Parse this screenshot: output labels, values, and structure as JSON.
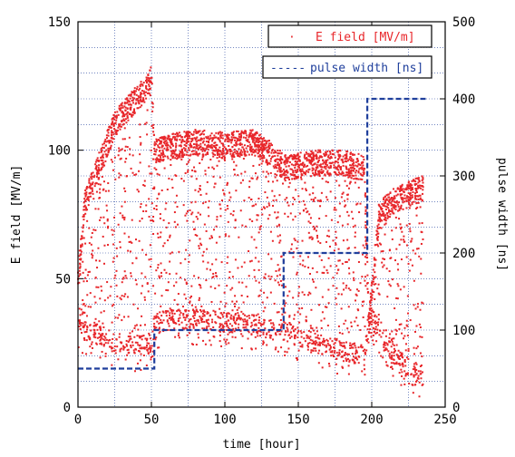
{
  "chart_data": {
    "type": "scatter",
    "xlabel": "time [hour]",
    "ylabel": "E field [MV/m]",
    "y2label": "pulse width [ns]",
    "xlim": [
      0,
      250
    ],
    "ylim": [
      0,
      150
    ],
    "y2lim": [
      0,
      500
    ],
    "xticks": [
      "0",
      "50",
      "100",
      "150",
      "200",
      "250"
    ],
    "yticks": [
      "0",
      "50",
      "100",
      "150"
    ],
    "y2ticks": [
      "0",
      "100",
      "200",
      "300",
      "400",
      "500"
    ],
    "grid": true,
    "legend": {
      "placement": "top-right",
      "entries": [
        {
          "marker": "·",
          "label": "E field [MV/m]"
        },
        {
          "marker": "-----",
          "label": "pulse width [ns]"
        }
      ]
    },
    "colors": {
      "e_field": "#e8262a",
      "pulse_width": "#1f3f9c",
      "grid": "#1f3f9c"
    },
    "series": [
      {
        "name": "E field [MV/m]",
        "axis": "left",
        "style": "dots",
        "envelope": [
          {
            "x": 0,
            "upper": 55,
            "lower": 30
          },
          {
            "x": 5,
            "upper": 85,
            "lower": 30
          },
          {
            "x": 15,
            "upper": 100,
            "lower": 28
          },
          {
            "x": 25,
            "upper": 115,
            "lower": 25
          },
          {
            "x": 35,
            "upper": 122,
            "lower": 24
          },
          {
            "x": 45,
            "upper": 128,
            "lower": 24
          },
          {
            "x": 50,
            "upper": 133,
            "lower": 25
          },
          {
            "x": 52,
            "upper": 105,
            "lower": 32
          },
          {
            "x": 60,
            "upper": 106,
            "lower": 34
          },
          {
            "x": 80,
            "upper": 108,
            "lower": 34
          },
          {
            "x": 100,
            "upper": 107,
            "lower": 33
          },
          {
            "x": 120,
            "upper": 108,
            "lower": 32
          },
          {
            "x": 135,
            "upper": 102,
            "lower": 30
          },
          {
            "x": 140,
            "upper": 98,
            "lower": 30
          },
          {
            "x": 160,
            "upper": 100,
            "lower": 25
          },
          {
            "x": 180,
            "upper": 100,
            "lower": 22
          },
          {
            "x": 195,
            "upper": 98,
            "lower": 20
          },
          {
            "x": 198,
            "upper": 38,
            "lower": 36
          },
          {
            "x": 205,
            "upper": 80,
            "lower": 30
          },
          {
            "x": 215,
            "upper": 85,
            "lower": 20
          },
          {
            "x": 225,
            "upper": 88,
            "lower": 15
          },
          {
            "x": 235,
            "upper": 90,
            "lower": 12
          }
        ]
      },
      {
        "name": "pulse width [ns]",
        "axis": "right",
        "style": "dashed-step",
        "x": [
          0,
          52,
          52,
          140,
          140,
          197,
          197,
          238
        ],
        "y": [
          50,
          50,
          100,
          100,
          200,
          200,
          400,
          400
        ]
      }
    ]
  }
}
